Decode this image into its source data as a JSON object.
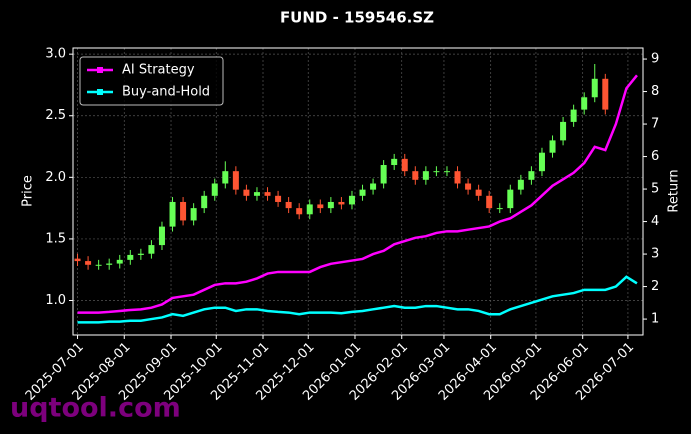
{
  "chart_data": {
    "type": "candlestick",
    "title": "FUND - 159546.SZ",
    "ylabel": "Price",
    "y2label": "Return",
    "watermark": "uqtool.com",
    "x": [
      "2025-07-01",
      "2025-07-08",
      "2025-07-15",
      "2025-07-22",
      "2025-07-29",
      "2025-08-05",
      "2025-08-12",
      "2025-08-19",
      "2025-08-26",
      "2025-09-02",
      "2025-09-09",
      "2025-09-16",
      "2025-09-23",
      "2025-09-30",
      "2025-10-07",
      "2025-10-14",
      "2025-10-21",
      "2025-10-28",
      "2025-11-04",
      "2025-11-11",
      "2025-11-18",
      "2025-11-25",
      "2025-12-02",
      "2025-12-09",
      "2025-12-16",
      "2025-12-23",
      "2025-12-30",
      "2026-01-06",
      "2026-01-13",
      "2026-01-20",
      "2026-01-27",
      "2026-02-03",
      "2026-02-10",
      "2026-02-17",
      "2026-02-24",
      "2026-03-03",
      "2026-03-10",
      "2026-03-17",
      "2026-03-24",
      "2026-03-31",
      "2026-04-07",
      "2026-04-14",
      "2026-04-21",
      "2026-04-28",
      "2026-05-05",
      "2026-05-12",
      "2026-05-19",
      "2026-05-26",
      "2026-06-02",
      "2026-06-09",
      "2026-06-16"
    ],
    "open": [
      1.34,
      1.32,
      1.29,
      1.29,
      1.3,
      1.33,
      1.37,
      1.38,
      1.45,
      1.6,
      1.8,
      1.65,
      1.75,
      1.85,
      1.95,
      2.05,
      1.9,
      1.85,
      1.88,
      1.85,
      1.8,
      1.75,
      1.7,
      1.78,
      1.75,
      1.8,
      1.78,
      1.85,
      1.9,
      1.95,
      2.1,
      2.15,
      2.05,
      1.98,
      2.05,
      2.05,
      2.05,
      1.95,
      1.9,
      1.85,
      1.75,
      1.75,
      1.9,
      1.98,
      2.05,
      2.2,
      2.3,
      2.45,
      2.55,
      2.65,
      2.8
    ],
    "high": [
      1.38,
      1.36,
      1.33,
      1.34,
      1.37,
      1.41,
      1.42,
      1.49,
      1.64,
      1.84,
      1.84,
      1.79,
      1.89,
      1.99,
      2.13,
      2.09,
      1.94,
      1.92,
      1.92,
      1.89,
      1.84,
      1.79,
      1.82,
      1.82,
      1.84,
      1.84,
      1.89,
      1.94,
      1.99,
      2.14,
      2.19,
      2.19,
      2.09,
      2.09,
      2.09,
      2.09,
      2.09,
      1.99,
      1.94,
      1.89,
      1.79,
      1.94,
      2.02,
      2.09,
      2.24,
      2.34,
      2.49,
      2.59,
      2.69,
      2.92,
      2.84
    ],
    "low": [
      1.28,
      1.25,
      1.25,
      1.25,
      1.26,
      1.29,
      1.33,
      1.34,
      1.41,
      1.56,
      1.61,
      1.61,
      1.71,
      1.81,
      1.91,
      1.86,
      1.81,
      1.81,
      1.81,
      1.76,
      1.71,
      1.66,
      1.66,
      1.71,
      1.71,
      1.74,
      1.74,
      1.81,
      1.86,
      1.91,
      2.06,
      2.01,
      1.94,
      1.94,
      2.01,
      2.01,
      1.91,
      1.86,
      1.81,
      1.71,
      1.71,
      1.71,
      1.86,
      1.94,
      2.01,
      2.16,
      2.26,
      2.41,
      2.51,
      2.61,
      2.51
    ],
    "close": [
      1.32,
      1.29,
      1.29,
      1.3,
      1.33,
      1.37,
      1.38,
      1.45,
      1.6,
      1.8,
      1.65,
      1.75,
      1.85,
      1.95,
      2.05,
      1.9,
      1.85,
      1.88,
      1.85,
      1.8,
      1.75,
      1.7,
      1.78,
      1.75,
      1.8,
      1.78,
      1.85,
      1.9,
      1.95,
      2.1,
      2.15,
      2.05,
      1.98,
      2.05,
      2.05,
      2.05,
      1.95,
      1.9,
      1.85,
      1.75,
      1.75,
      1.9,
      1.98,
      2.05,
      2.2,
      2.3,
      2.45,
      2.55,
      2.65,
      2.8,
      2.55
    ],
    "up_color": "#66ff55",
    "down_color": "#ff5533",
    "series": [
      {
        "name": "AI Strategy",
        "color": "#ff00ff",
        "axis": "y2",
        "x": [
          "2025-07-01",
          "2025-07-08",
          "2025-07-15",
          "2025-07-22",
          "2025-07-29",
          "2025-08-05",
          "2025-08-12",
          "2025-08-19",
          "2025-08-26",
          "2025-09-02",
          "2025-09-09",
          "2025-09-16",
          "2025-09-23",
          "2025-09-30",
          "2025-10-07",
          "2025-10-14",
          "2025-10-21",
          "2025-10-28",
          "2025-11-04",
          "2025-11-11",
          "2025-11-18",
          "2025-11-25",
          "2025-12-02",
          "2025-12-09",
          "2025-12-16",
          "2025-12-23",
          "2025-12-30",
          "2026-01-06",
          "2026-01-13",
          "2026-01-20",
          "2026-01-27",
          "2026-02-03",
          "2026-02-10",
          "2026-02-17",
          "2026-02-24",
          "2026-03-03",
          "2026-03-10",
          "2026-03-17",
          "2026-03-24",
          "2026-03-31",
          "2026-04-07",
          "2026-04-14",
          "2026-04-21",
          "2026-04-28",
          "2026-05-05",
          "2026-05-12",
          "2026-05-19",
          "2026-05-26",
          "2026-06-02",
          "2026-06-09",
          "2026-06-16",
          "2026-06-23",
          "2026-06-30",
          "2026-07-07"
        ],
        "values": [
          1.2,
          1.2,
          1.2,
          1.22,
          1.25,
          1.28,
          1.3,
          1.35,
          1.45,
          1.65,
          1.7,
          1.75,
          1.9,
          2.05,
          2.1,
          2.1,
          2.15,
          2.25,
          2.4,
          2.45,
          2.45,
          2.45,
          2.45,
          2.6,
          2.7,
          2.75,
          2.8,
          2.85,
          3.0,
          3.1,
          3.3,
          3.4,
          3.5,
          3.55,
          3.65,
          3.7,
          3.7,
          3.75,
          3.8,
          3.85,
          4.0,
          4.1,
          4.3,
          4.5,
          4.8,
          5.1,
          5.3,
          5.5,
          5.8,
          6.3,
          6.2,
          7.0,
          8.1,
          8.5
        ]
      },
      {
        "name": "Buy-and-Hold",
        "color": "#00ffff",
        "axis": "y2",
        "x": [
          "2025-07-01",
          "2025-07-08",
          "2025-07-15",
          "2025-07-22",
          "2025-07-29",
          "2025-08-05",
          "2025-08-12",
          "2025-08-19",
          "2025-08-26",
          "2025-09-02",
          "2025-09-09",
          "2025-09-16",
          "2025-09-23",
          "2025-09-30",
          "2025-10-07",
          "2025-10-14",
          "2025-10-21",
          "2025-10-28",
          "2025-11-04",
          "2025-11-11",
          "2025-11-18",
          "2025-11-25",
          "2025-12-02",
          "2025-12-09",
          "2025-12-16",
          "2025-12-23",
          "2025-12-30",
          "2026-01-06",
          "2026-01-13",
          "2026-01-20",
          "2026-01-27",
          "2026-02-03",
          "2026-02-10",
          "2026-02-17",
          "2026-02-24",
          "2026-03-03",
          "2026-03-10",
          "2026-03-17",
          "2026-03-24",
          "2026-03-31",
          "2026-04-07",
          "2026-04-14",
          "2026-04-21",
          "2026-04-28",
          "2026-05-05",
          "2026-05-12",
          "2026-05-19",
          "2026-05-26",
          "2026-06-02",
          "2026-06-09",
          "2026-06-16",
          "2026-06-23",
          "2026-06-30",
          "2026-07-07"
        ],
        "values": [
          0.9,
          0.9,
          0.9,
          0.92,
          0.92,
          0.95,
          0.95,
          1.0,
          1.05,
          1.15,
          1.1,
          1.2,
          1.3,
          1.35,
          1.35,
          1.25,
          1.3,
          1.3,
          1.25,
          1.22,
          1.2,
          1.15,
          1.2,
          1.2,
          1.2,
          1.18,
          1.22,
          1.25,
          1.3,
          1.35,
          1.4,
          1.35,
          1.35,
          1.4,
          1.4,
          1.35,
          1.3,
          1.3,
          1.25,
          1.15,
          1.15,
          1.3,
          1.4,
          1.5,
          1.6,
          1.7,
          1.75,
          1.8,
          1.9,
          1.9,
          1.9,
          2.0,
          2.3,
          2.1
        ]
      }
    ],
    "xlim": [
      "2025-06-28",
      "2026-07-11"
    ],
    "xticks": [
      "2025-07-01",
      "2025-08-01",
      "2025-09-01",
      "2025-10-01",
      "2025-11-01",
      "2025-12-01",
      "2026-01-01",
      "2026-02-01",
      "2026-03-01",
      "2026-04-01",
      "2026-05-01",
      "2026-06-01",
      "2026-07-01"
    ],
    "ylim": [
      0.72,
      3.05
    ],
    "yticks": [
      {
        "value": 1,
        "label": "1.0"
      },
      1.5,
      {
        "value": 2,
        "label": "2.0"
      },
      2.5,
      {
        "value": 3,
        "label": "3.0"
      }
    ],
    "y2lim": [
      0.51,
      9.34
    ],
    "y2ticks": [
      1,
      2,
      3,
      4,
      5,
      6,
      7,
      8,
      9
    ],
    "grid": true,
    "legend": "upper left"
  }
}
